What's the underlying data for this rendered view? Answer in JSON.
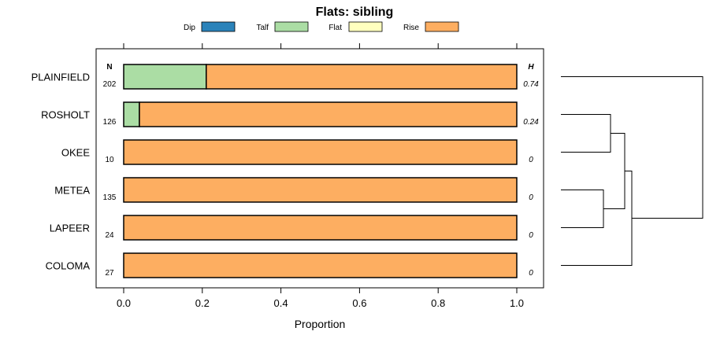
{
  "chart_data": {
    "type": "bar",
    "orientation": "horizontal",
    "stacked": true,
    "title": "Flats: sibling",
    "xlabel": "Proportion",
    "ylabel": "",
    "xlim": [
      0,
      1
    ],
    "x_ticks": [
      0,
      0.2,
      0.4,
      0.6,
      0.8,
      1
    ],
    "x_tick_labels": [
      "0.0",
      "0.2",
      "0.4",
      "0.6",
      "0.8",
      "1.0"
    ],
    "legend_position": "top",
    "legend": [
      {
        "name": "Dip",
        "color": "#2b83ba"
      },
      {
        "name": "Talf",
        "color": "#abdda4"
      },
      {
        "name": "Flat",
        "color": "#ffffbf"
      },
      {
        "name": "Rise",
        "color": "#fdae61"
      }
    ],
    "n_header": "N",
    "h_header": "H",
    "categories": [
      "PLAINFIELD",
      "ROSHOLT",
      "OKEE",
      "METEA",
      "LAPEER",
      "COLOMA"
    ],
    "n_values": [
      "202",
      "126",
      "10",
      "135",
      "24",
      "27"
    ],
    "h_values": [
      "0.74",
      "0.24",
      "0",
      "0",
      "0",
      "0"
    ],
    "series": [
      {
        "name": "Dip",
        "values": [
          0,
          0,
          0,
          0,
          0,
          0
        ]
      },
      {
        "name": "Talf",
        "values": [
          0.21,
          0.04,
          0,
          0,
          0,
          0
        ]
      },
      {
        "name": "Flat",
        "values": [
          0,
          0,
          0,
          0,
          0,
          0
        ]
      },
      {
        "name": "Rise",
        "values": [
          0.79,
          0.96,
          1,
          1,
          1,
          1
        ]
      }
    ],
    "dendrogram": {
      "merges": [
        {
          "a": "METEA",
          "b": "LAPEER",
          "height": 0.3
        },
        {
          "a": "ROSHOLT",
          "b": "OKEE",
          "height": 0.35
        },
        {
          "a": "ROSHOLT+OKEE",
          "b": "METEA+LAPEER",
          "height": 0.45
        },
        {
          "a": "ROSHOLT+OKEE+METEA+LAPEER",
          "b": "COLOMA",
          "height": 0.5
        },
        {
          "a": "ALL_BUT_PLAINFIELD",
          "b": "PLAINFIELD",
          "height": 1.0
        }
      ]
    }
  }
}
